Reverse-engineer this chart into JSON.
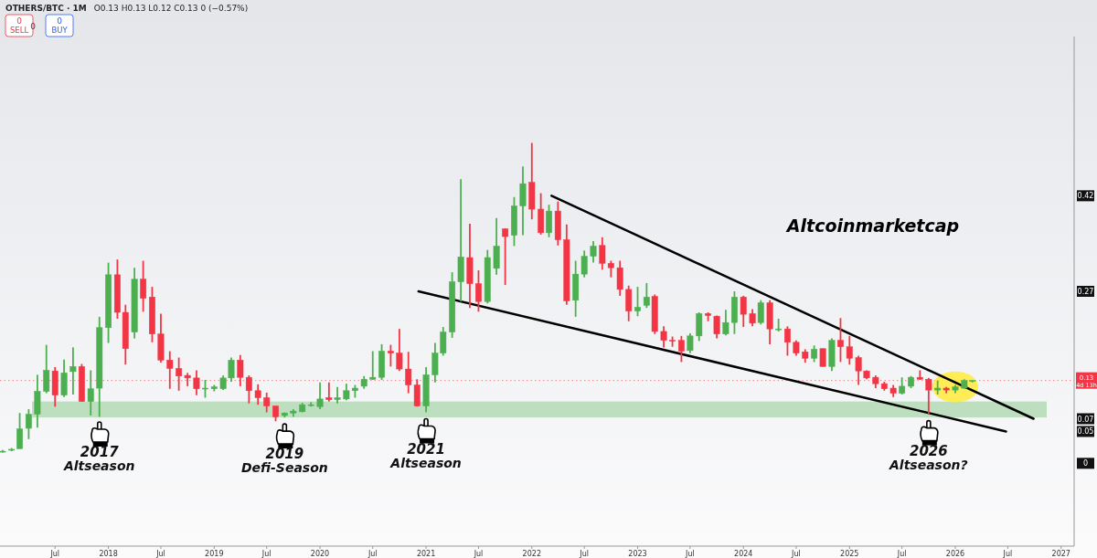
{
  "chart_data": {
    "type": "candlestick",
    "title": "OTHERS/BTC · 1M",
    "subtitle": "O0.13 H0.13 L0.12 C0.13 0 (−0.57%)",
    "x": [
      "2017-01",
      "2017-02",
      "2017-03",
      "2017-04",
      "2017-05",
      "2017-06",
      "2017-07",
      "2017-08",
      "2017-09",
      "2017-10",
      "2017-11",
      "2017-12",
      "2018-01",
      "2018-02",
      "2018-03",
      "2018-04",
      "2018-05",
      "2018-06",
      "2018-07",
      "2018-08",
      "2018-09",
      "2018-10",
      "2018-11",
      "2018-12",
      "2019-01",
      "2019-02",
      "2019-03",
      "2019-04",
      "2019-05",
      "2019-06",
      "2019-07",
      "2019-08",
      "2019-09",
      "2019-10",
      "2019-11",
      "2019-12",
      "2020-01",
      "2020-02",
      "2020-03",
      "2020-04",
      "2020-05",
      "2020-06",
      "2020-07",
      "2020-08",
      "2020-09",
      "2020-10",
      "2020-11",
      "2020-12",
      "2021-01",
      "2021-02",
      "2021-03",
      "2021-04",
      "2021-05",
      "2021-06",
      "2021-07",
      "2021-08",
      "2021-09",
      "2021-10",
      "2021-11",
      "2021-12",
      "2022-01",
      "2022-02",
      "2022-03",
      "2022-04",
      "2022-05",
      "2022-06",
      "2022-07",
      "2022-08",
      "2022-09",
      "2022-10",
      "2022-11",
      "2022-12",
      "2023-01",
      "2023-02",
      "2023-03",
      "2023-04",
      "2023-05",
      "2023-06",
      "2023-07",
      "2023-08",
      "2023-09",
      "2023-10",
      "2023-11",
      "2023-12",
      "2024-01",
      "2024-02",
      "2024-03",
      "2024-04",
      "2024-05",
      "2024-06",
      "2024-07",
      "2024-08",
      "2024-09",
      "2024-10",
      "2024-11",
      "2024-12",
      "2025-01",
      "2025-02",
      "2025-03",
      "2025-04",
      "2025-05",
      "2025-06",
      "2025-07",
      "2025-08",
      "2025-09",
      "2025-10",
      "2025-11",
      "2025-12",
      "2026-01",
      "2026-02",
      "2026-03"
    ],
    "ohlc": [
      [
        0.019,
        0.021,
        0.017,
        0.019
      ],
      [
        0.021,
        0.024,
        0.019,
        0.022
      ],
      [
        0.023,
        0.079,
        0.023,
        0.054
      ],
      [
        0.055,
        0.085,
        0.038,
        0.077
      ],
      [
        0.077,
        0.139,
        0.056,
        0.113
      ],
      [
        0.113,
        0.186,
        0.11,
        0.146
      ],
      [
        0.145,
        0.151,
        0.089,
        0.107
      ],
      [
        0.107,
        0.163,
        0.104,
        0.142
      ],
      [
        0.144,
        0.182,
        0.108,
        0.152
      ],
      [
        0.152,
        0.156,
        0.097,
        0.097
      ],
      [
        0.097,
        0.146,
        0.075,
        0.117
      ],
      [
        0.118,
        0.23,
        0.073,
        0.213
      ],
      [
        0.213,
        0.315,
        0.189,
        0.296
      ],
      [
        0.296,
        0.32,
        0.227,
        0.237
      ],
      [
        0.237,
        0.249,
        0.155,
        0.18
      ],
      [
        0.206,
        0.307,
        0.196,
        0.289
      ],
      [
        0.289,
        0.318,
        0.238,
        0.259
      ],
      [
        0.261,
        0.277,
        0.19,
        0.203
      ],
      [
        0.203,
        0.235,
        0.158,
        0.162
      ],
      [
        0.162,
        0.176,
        0.117,
        0.149
      ],
      [
        0.149,
        0.166,
        0.114,
        0.137
      ],
      [
        0.138,
        0.142,
        0.121,
        0.134
      ],
      [
        0.134,
        0.146,
        0.107,
        0.117
      ],
      [
        0.118,
        0.131,
        0.103,
        0.118
      ],
      [
        0.117,
        0.123,
        0.113,
        0.12
      ],
      [
        0.117,
        0.138,
        0.115,
        0.134
      ],
      [
        0.134,
        0.166,
        0.128,
        0.162
      ],
      [
        0.162,
        0.17,
        0.121,
        0.135
      ],
      [
        0.135,
        0.138,
        0.094,
        0.114
      ],
      [
        0.114,
        0.124,
        0.092,
        0.103
      ],
      [
        0.103,
        0.111,
        0.08,
        0.09
      ],
      [
        0.09,
        0.09,
        0.066,
        0.073
      ],
      [
        0.075,
        0.08,
        0.072,
        0.079
      ],
      [
        0.079,
        0.085,
        0.073,
        0.082
      ],
      [
        0.081,
        0.095,
        0.08,
        0.092
      ],
      [
        0.092,
        0.096,
        0.089,
        0.092
      ],
      [
        0.089,
        0.127,
        0.085,
        0.101
      ],
      [
        0.103,
        0.127,
        0.097,
        0.1
      ],
      [
        0.1,
        0.12,
        0.094,
        0.103
      ],
      [
        0.101,
        0.125,
        0.099,
        0.114
      ],
      [
        0.114,
        0.123,
        0.103,
        0.118
      ],
      [
        0.121,
        0.137,
        0.117,
        0.132
      ],
      [
        0.132,
        0.176,
        0.131,
        0.135
      ],
      [
        0.135,
        0.187,
        0.131,
        0.176
      ],
      [
        0.176,
        0.186,
        0.152,
        0.173
      ],
      [
        0.173,
        0.211,
        0.145,
        0.148
      ],
      [
        0.148,
        0.175,
        0.11,
        0.123
      ],
      [
        0.123,
        0.132,
        0.089,
        0.09
      ],
      [
        0.09,
        0.151,
        0.08,
        0.139
      ],
      [
        0.139,
        0.189,
        0.127,
        0.173
      ],
      [
        0.173,
        0.214,
        0.169,
        0.206
      ],
      [
        0.206,
        0.3,
        0.197,
        0.285
      ],
      [
        0.285,
        0.446,
        0.254,
        0.324
      ],
      [
        0.323,
        0.376,
        0.244,
        0.282
      ],
      [
        0.282,
        0.303,
        0.238,
        0.254
      ],
      [
        0.254,
        0.335,
        0.251,
        0.323
      ],
      [
        0.306,
        0.385,
        0.296,
        0.341
      ],
      [
        0.368,
        0.369,
        0.28,
        0.356
      ],
      [
        0.358,
        0.418,
        0.341,
        0.404
      ],
      [
        0.404,
        0.466,
        0.358,
        0.439
      ],
      [
        0.441,
        0.503,
        0.383,
        0.399
      ],
      [
        0.399,
        0.424,
        0.359,
        0.362
      ],
      [
        0.362,
        0.406,
        0.355,
        0.396
      ],
      [
        0.396,
        0.411,
        0.342,
        0.351
      ],
      [
        0.351,
        0.375,
        0.249,
        0.255
      ],
      [
        0.256,
        0.318,
        0.23,
        0.297
      ],
      [
        0.297,
        0.334,
        0.292,
        0.325
      ],
      [
        0.325,
        0.349,
        0.315,
        0.341
      ],
      [
        0.342,
        0.355,
        0.304,
        0.314
      ],
      [
        0.314,
        0.318,
        0.292,
        0.307
      ],
      [
        0.307,
        0.318,
        0.263,
        0.273
      ],
      [
        0.273,
        0.279,
        0.223,
        0.239
      ],
      [
        0.239,
        0.277,
        0.231,
        0.245
      ],
      [
        0.248,
        0.283,
        0.244,
        0.261
      ],
      [
        0.262,
        0.265,
        0.203,
        0.207
      ],
      [
        0.207,
        0.215,
        0.182,
        0.193
      ],
      [
        0.193,
        0.199,
        0.183,
        0.192
      ],
      [
        0.193,
        0.2,
        0.159,
        0.176
      ],
      [
        0.177,
        0.204,
        0.173,
        0.2
      ],
      [
        0.2,
        0.237,
        0.192,
        0.235
      ],
      [
        0.235,
        0.237,
        0.223,
        0.232
      ],
      [
        0.231,
        0.232,
        0.196,
        0.203
      ],
      [
        0.203,
        0.241,
        0.201,
        0.221
      ],
      [
        0.221,
        0.27,
        0.203,
        0.261
      ],
      [
        0.261,
        0.263,
        0.214,
        0.234
      ],
      [
        0.235,
        0.242,
        0.215,
        0.22
      ],
      [
        0.221,
        0.256,
        0.218,
        0.252
      ],
      [
        0.252,
        0.256,
        0.187,
        0.211
      ],
      [
        0.211,
        0.227,
        0.207,
        0.211
      ],
      [
        0.211,
        0.215,
        0.169,
        0.19
      ],
      [
        0.19,
        0.193,
        0.169,
        0.173
      ],
      [
        0.175,
        0.179,
        0.158,
        0.165
      ],
      [
        0.165,
        0.185,
        0.159,
        0.179
      ],
      [
        0.18,
        0.18,
        0.152,
        0.152
      ],
      [
        0.152,
        0.196,
        0.145,
        0.193
      ],
      [
        0.193,
        0.228,
        0.159,
        0.183
      ],
      [
        0.183,
        0.2,
        0.155,
        0.165
      ],
      [
        0.166,
        0.169,
        0.123,
        0.145
      ],
      [
        0.145,
        0.146,
        0.132,
        0.134
      ],
      [
        0.135,
        0.138,
        0.118,
        0.125
      ],
      [
        0.125,
        0.128,
        0.114,
        0.117
      ],
      [
        0.118,
        0.123,
        0.104,
        0.11
      ],
      [
        0.11,
        0.135,
        0.108,
        0.121
      ],
      [
        0.121,
        0.137,
        0.118,
        0.135
      ],
      [
        0.135,
        0.146,
        0.131,
        0.132
      ],
      [
        0.132,
        0.134,
        0.077,
        0.115
      ],
      [
        0.115,
        0.13,
        0.108,
        0.118
      ],
      [
        0.118,
        0.12,
        0.11,
        0.115
      ],
      [
        0.115,
        0.123,
        0.11,
        0.12
      ],
      [
        0.118,
        0.132,
        0.117,
        0.13
      ],
      [
        0.13,
        0.13,
        0.127,
        0.13
      ]
    ],
    "series": [
      {
        "type": "line",
        "color": "#000000",
        "x": [
          "2022-03-10",
          "2026-09-28"
        ],
        "values": [
          0.42,
          0.07
        ]
      },
      {
        "type": "line",
        "color": "#000000",
        "x": [
          "2020-12-06",
          "2026-06-25"
        ],
        "values": [
          0.27,
          0.05
        ]
      }
    ],
    "xlim": [
      "2016-12-23",
      "2027-02-15"
    ],
    "xticks": [
      {
        "value": "2017-07",
        "label": "Jul"
      },
      {
        "value": "2018",
        "label": "2018"
      },
      {
        "value": "2018-07",
        "label": "Jul"
      },
      {
        "value": "2019",
        "label": "2019"
      },
      {
        "value": "2019-07",
        "label": "Jul"
      },
      {
        "value": "2020",
        "label": "2020"
      },
      {
        "value": "2020-07",
        "label": "Jul"
      },
      {
        "value": "2021",
        "label": "2021"
      },
      {
        "value": "2021-07",
        "label": "Jul"
      },
      {
        "value": "2022",
        "label": "2022"
      },
      {
        "value": "2022-07",
        "label": "Jul"
      },
      {
        "value": "2023",
        "label": "2023"
      },
      {
        "value": "2023-07",
        "label": "Jul"
      },
      {
        "value": "2024",
        "label": "2024"
      },
      {
        "value": "2024-07",
        "label": "Jul"
      },
      {
        "value": "2025",
        "label": "2025"
      },
      {
        "value": "2025-07",
        "label": "Jul"
      },
      {
        "value": "2026",
        "label": "2026"
      },
      {
        "value": "2026-07",
        "label": "Jul"
      },
      {
        "value": "2027",
        "label": "2027"
      }
    ],
    "ylim": [
      -0.13,
      0.67
    ],
    "yticks": [
      0,
      0.05,
      0.07,
      0.27,
      0.42
    ],
    "bands": [
      {
        "axis": "y",
        "from": 0.072,
        "to": 0.097,
        "color": "#a5d6a7"
      }
    ],
    "ref_lines": [
      {
        "axis": "y",
        "value": 0.13,
        "label": "0.13 4d 13h",
        "color": "#f23645",
        "line_style": "dotted"
      }
    ],
    "annotations": [
      "Altcoinmarketcap",
      {
        "text": "2017 Altseason",
        "x": "2017-12",
        "y": 0.075
      },
      {
        "text": "2019 Defi-Season",
        "x": "2019-09",
        "y": 0.072
      },
      {
        "text": "2021 Altseason",
        "x": "2021-01",
        "y": 0.08
      },
      {
        "text": "2026 Altseason?",
        "x": "2025-10",
        "y": 0.077
      },
      "0 SELL",
      "0",
      "0 BUY"
    ]
  }
}
